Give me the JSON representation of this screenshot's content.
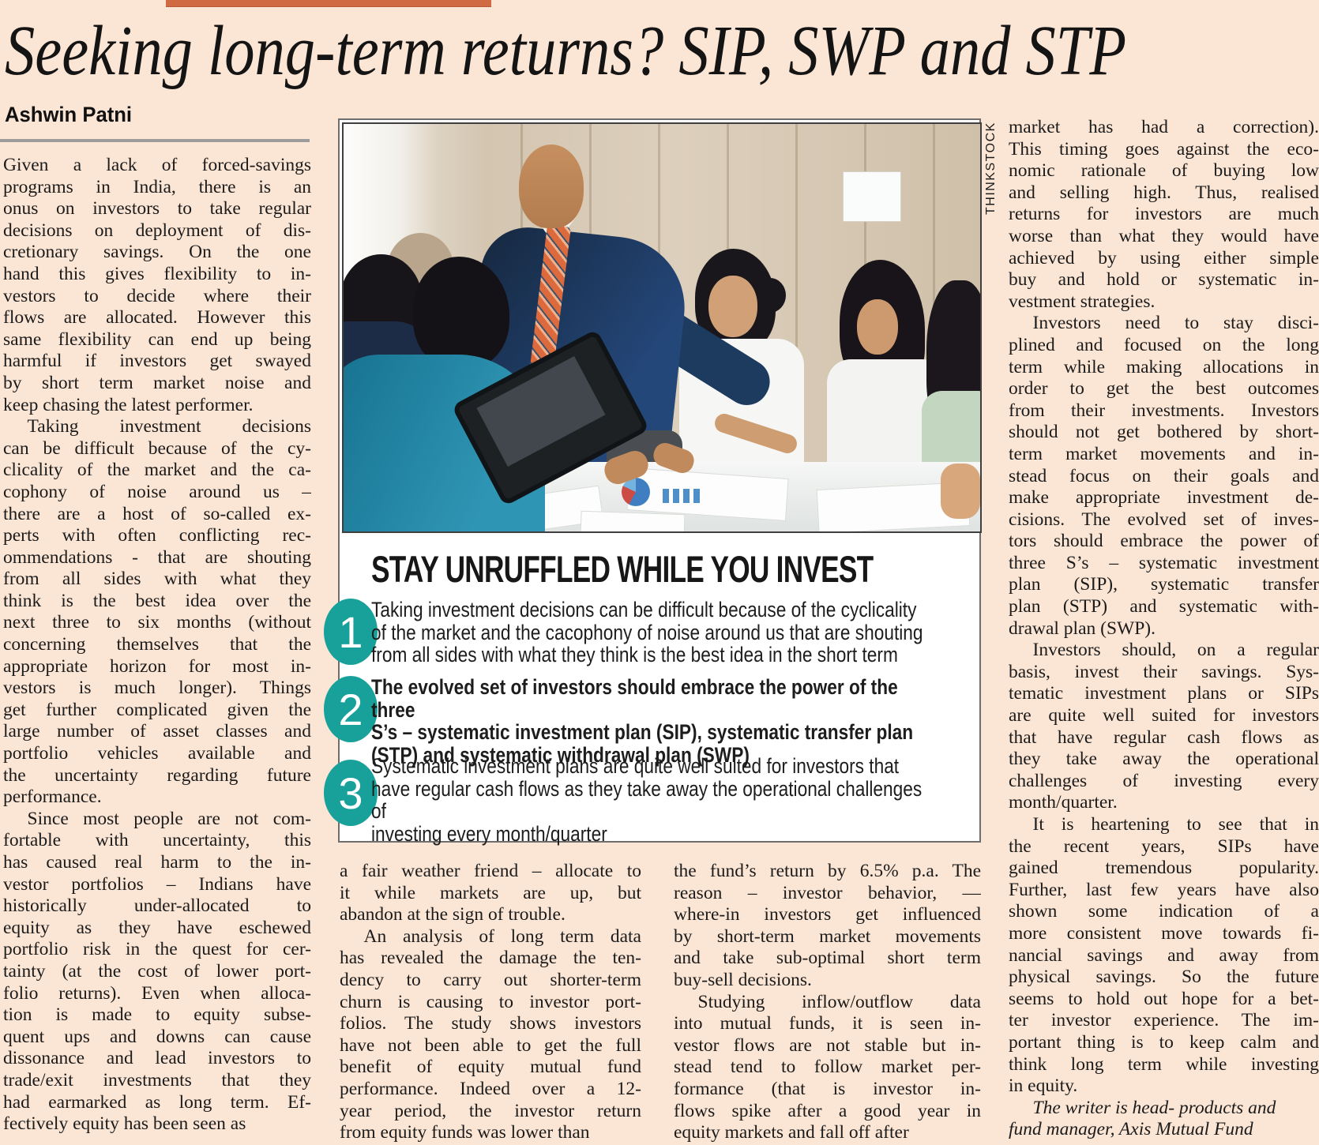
{
  "page": {
    "headline": "Seeking long-term returns? SIP, SWP and STP",
    "byline": "Ashwin Patni",
    "background_color": "#fbe5d4",
    "accent_bar_color": "#cf6a42",
    "accent_teal_color": "#18a19b",
    "text_color": "#1b1b1b"
  },
  "photo": {
    "credit": "THINKSTOCK"
  },
  "box": {
    "title": "STAY UNRUFFLED WHILE YOU INVEST",
    "items": [
      {
        "number": "1",
        "emphasis": false,
        "lines": [
          "Taking investment decisions can be difficult because of the cyclicality",
          "of the market and the cacophony of noise around us that are shouting",
          "from all sides with what they think is the best idea in the short term"
        ]
      },
      {
        "number": "2",
        "emphasis": true,
        "lines": [
          "The evolved set of investors should embrace the power of the three",
          "S’s – systematic investment plan (SIP), systematic transfer plan",
          "(STP) and systematic withdrawal plan (SWP)"
        ]
      },
      {
        "number": "3",
        "emphasis": false,
        "lines": [
          "Systematic investment plans are quite well suited for investors that",
          "have regular cash flows as they take away the operational challenges of",
          "investing every month/quarter"
        ]
      }
    ]
  },
  "columns": {
    "left": {
      "lines": [
        "Given a lack of forced-savings",
        "programs in India, there is an",
        "onus on investors to take regular",
        "decisions on deployment of dis-",
        "cretionary savings. On the one",
        "hand this gives flexibility to in-",
        "vestors to decide where their",
        "flows are allocated. However this",
        "same flexibility can end up being",
        "harmful if investors get swayed",
        "by short term market noise and",
        "keep chasing the latest performer.",
        "    Taking investment decisions",
        "can be difficult because of the cy-",
        "clicality of the market and the ca-",
        "cophony of noise around us –",
        "there are a host of so-called ex-",
        "perts with often conflicting rec-",
        "ommendations - that are shouting",
        "from all sides with what they",
        "think is the best idea over the",
        "next three to six months (without",
        "concerning themselves that the",
        "appropriate horizon for most in-",
        "vestors is much longer). Things",
        "get further complicated given the",
        "large number of asset classes and",
        "portfolio vehicles available and",
        "the uncertainty regarding future",
        "performance.",
        "    Since most people are not com-",
        "fortable with uncertainty, this",
        "has caused real harm to the in-",
        "vestor portfolios – Indians have",
        "historically under-allocated to",
        "equity as they have eschewed",
        "portfolio risk in the quest for cer-",
        "tainty (at the cost of lower port-",
        "folio returns). Even when alloca-",
        "tion is made to equity subse-",
        "quent ups and downs can cause",
        "dissonance and lead investors to",
        "trade/exit investments that they",
        "had earmarked as long term. Ef-",
        "fectively equity has been seen as"
      ]
    },
    "mid_left": {
      "lines": [
        "a fair weather friend – allocate to",
        "it while markets are up, but",
        "abandon at the sign of trouble.",
        "    An analysis of long term data",
        "has revealed the damage the ten-",
        "dency to carry out shorter-term",
        "churn is causing to investor port-",
        "folios. The study shows investors",
        "have not been able to get the full",
        "benefit of equity mutual fund",
        "performance. Indeed over a 12-",
        "year period, the investor return",
        "from equity funds was lower than"
      ]
    },
    "mid_right": {
      "lines": [
        "the fund’s return by 6.5% p.a. The",
        "reason – investor behavior, —",
        "where-in investors get influenced",
        "by short-term market movements",
        "and take sub-optimal short term",
        "buy-sell decisions.",
        "    Studying inflow/outflow data",
        "into mutual funds, it is seen in-",
        "vestor flows are not stable but in-",
        "stead tend to follow market per-",
        "formance (that is investor in-",
        "flows spike after a good year in",
        "equity markets and fall off after"
      ]
    },
    "right": {
      "lines": [
        "market has had a correction).",
        "This timing goes against the eco-",
        "nomic rationale of buying low",
        "and selling high. Thus, realised",
        "returns for investors are much",
        "worse than what they would have",
        "achieved by using either simple",
        "buy and hold or systematic in-",
        "vestment strategies.",
        "    Investors need to stay disci-",
        "plined and focused on the long",
        "term while making allocations in",
        "order to get the best outcomes",
        "from their investments. Investors",
        "should not get bothered by short-",
        "term market movements and in-",
        "stead focus on their goals and",
        "make appropriate investment de-",
        "cisions. The evolved set of inves-",
        "tors should embrace the power of",
        "three S’s – systematic investment",
        "plan (SIP), systematic transfer",
        "plan (STP) and systematic with-",
        "drawal plan (SWP).",
        "    Investors should, on a regular",
        "basis, invest their savings. Sys-",
        "tematic investment plans or SIPs",
        "are quite well suited for investors",
        "that have regular cash flows as",
        "they take away the operational",
        "challenges of investing every",
        "month/quarter.",
        "    It is heartening to see that in",
        "the recent years, SIPs have",
        "gained tremendous popularity.",
        "Further, last few years have also",
        "shown some indication of a",
        "more consistent move towards fi-",
        "nancial savings and away from",
        "physical savings. So the future",
        "seems to hold out hope for a bet-",
        "ter investor experience. The im-",
        "portant thing is to keep calm and",
        "think long term while investing",
        "in equity."
      ],
      "footer_lines": [
        "    The writer is head- products and",
        "fund manager, Axis Mutual Fund"
      ]
    }
  }
}
